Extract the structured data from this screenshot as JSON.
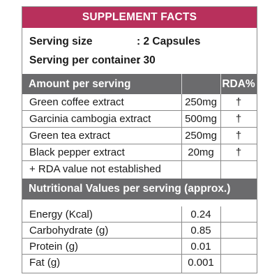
{
  "title": "SUPPLEMENT FACTS",
  "serving": {
    "size_label": "Serving size",
    "size_value": ": 2 Capsules",
    "container_label": "Serving per container",
    "container_value": ": 30"
  },
  "ingredients_header": {
    "label": "Amount per serving",
    "rda_label": "RDA%"
  },
  "ingredients": [
    {
      "name": "Green coffee extract",
      "amount": "250mg",
      "rda": "†"
    },
    {
      "name": "Garcinia cambogia extract",
      "amount": "500mg",
      "rda": "†"
    },
    {
      "name": "Green tea extract",
      "amount": "250mg",
      "rda": "†"
    },
    {
      "name": "Black pepper extract",
      "amount": "20mg",
      "rda": "†"
    }
  ],
  "rda_note": "+ RDA value not established",
  "nutrition_header": {
    "label": "Nutritional Values per serving (approx.)"
  },
  "nutrition": [
    {
      "name": "Energy (Kcal)",
      "value": "0.24"
    },
    {
      "name": "Carbohydrate (g)",
      "value": "0.85"
    },
    {
      "name": "Protein (g)",
      "value": "0.01"
    },
    {
      "name": "Fat (g)",
      "value": "0.001"
    }
  ],
  "colors": {
    "title_bg": "#b8305c",
    "section_bg": "#6b6b6d",
    "border": "#8a8a8a"
  }
}
